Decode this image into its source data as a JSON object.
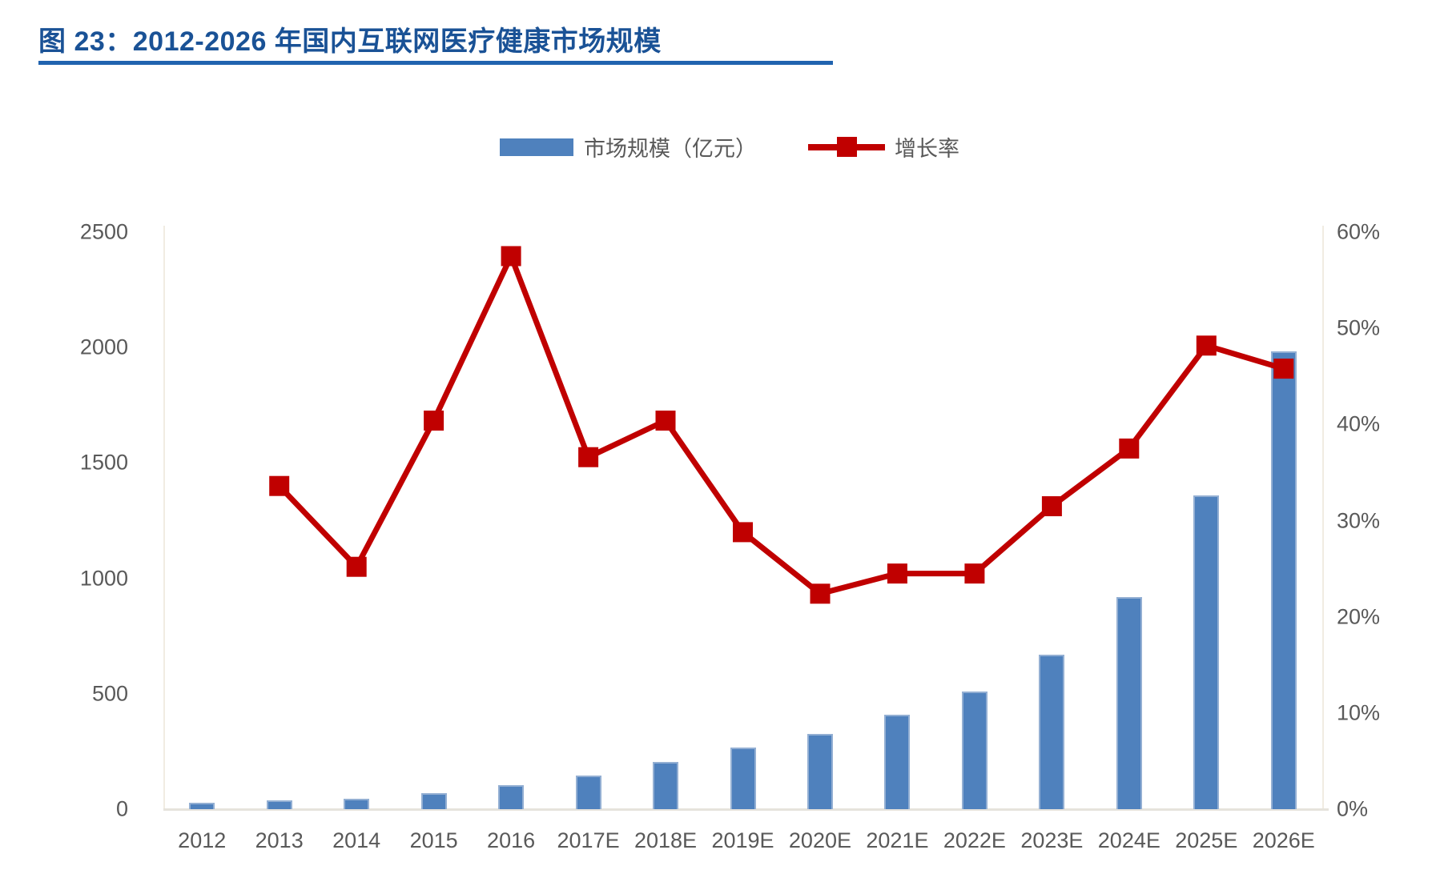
{
  "figure": {
    "title": "图 23：2012-2026 年国内互联网医疗健康市场规模"
  },
  "legend": {
    "market_size_label": "市场规模（亿元）",
    "growth_rate_label": "增长率"
  },
  "colors": {
    "bar": "#4f81bd",
    "bar_edge": "#93afd3",
    "line": "#c00000",
    "title_text": "#1a5296",
    "title_rule": "#2063af",
    "axis_text": "#595959",
    "axis_line": "#f1ece2",
    "baseline": "#e6e3dc",
    "background": "#ffffff"
  },
  "chart_data": {
    "type": "bar+line combo",
    "title": "图 23：2012-2026 年国内互联网医疗健康市场规模",
    "categories": [
      "2012",
      "2013",
      "2014",
      "2015",
      "2016",
      "2017E",
      "2018E",
      "2019E",
      "2020E",
      "2021E",
      "2022E",
      "2023E",
      "2024E",
      "2025E",
      "2026E"
    ],
    "series": [
      {
        "name": "市场规模（亿元）",
        "type": "bar",
        "axis": "left",
        "unit": "亿元",
        "color": "#4f81bd",
        "values": [
          28,
          38,
          46,
          70,
          105,
          146,
          206,
          266,
          326,
          408,
          508,
          668,
          918,
          1360,
          1985
        ]
      },
      {
        "name": "增长率",
        "type": "line",
        "axis": "right",
        "unit": "%",
        "color": "#c00000",
        "marker": "square",
        "values": [
          null,
          33.6,
          25.2,
          40.4,
          57.5,
          36.6,
          40.4,
          28.8,
          22.4,
          24.5,
          24.5,
          31.5,
          37.5,
          48.2,
          45.8
        ]
      }
    ],
    "left_axis": {
      "min": 0,
      "max": 2500,
      "step": 500,
      "tick_labels": [
        "2500",
        "2000",
        "1500",
        "1000",
        "500",
        "0"
      ]
    },
    "right_axis": {
      "min": 0,
      "max": 60,
      "step": 10,
      "tick_labels": [
        "60%",
        "50%",
        "40%",
        "30%",
        "20%",
        "10%",
        "0%"
      ]
    },
    "grid": false,
    "legend_position": "top-center"
  }
}
